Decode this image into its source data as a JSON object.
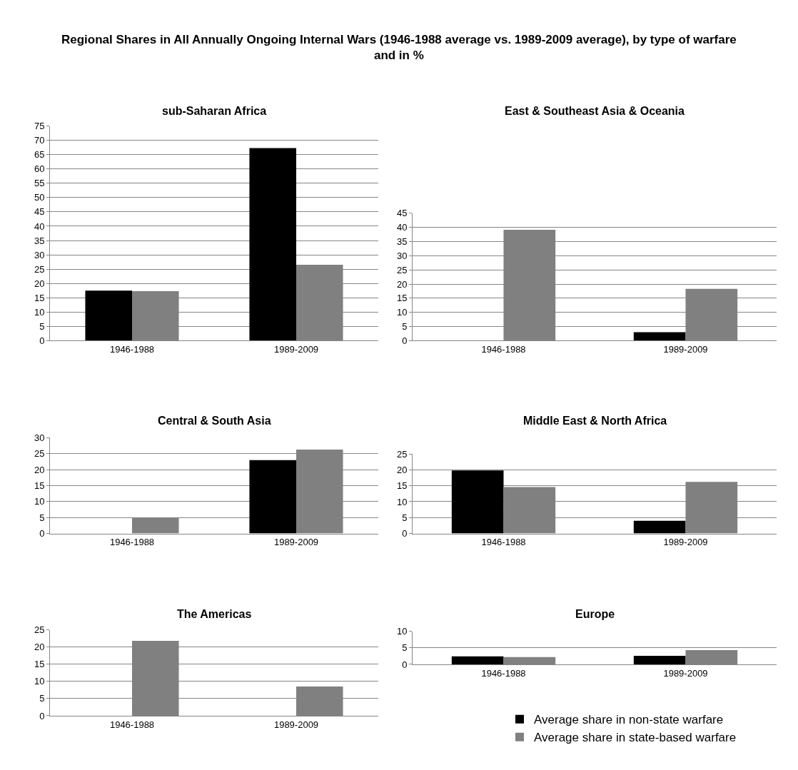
{
  "chart_data": [
    {
      "type": "bar",
      "title": "sub-Saharan Africa",
      "annotations": [
        "Regional Shares in All Annually Ongoing Internal Wars (1946-1988 average vs. 1989-2009 average), by type of warfare and in %"
      ],
      "categories": [
        "1946-1988",
        "1989-2009"
      ],
      "series": [
        {
          "color": "#000000",
          "values": [
            17.5,
            67.3
          ]
        },
        {
          "color": "#808080",
          "values": [
            17.3,
            26.5
          ]
        }
      ],
      "ylim": [
        0,
        75
      ],
      "yticks": [
        0,
        5,
        10,
        15,
        20,
        25,
        30,
        35,
        40,
        45,
        50,
        55,
        60,
        65,
        70,
        75
      ],
      "grid": "y",
      "tick_labels": "y",
      "legend": false
    },
    {
      "type": "bar",
      "title": "East & Southeast Asia & Oceania",
      "categories": [
        "1946-1988",
        "1989-2009"
      ],
      "series": [
        {
          "color": "#000000",
          "values": [
            0,
            3.0
          ]
        },
        {
          "color": "#808080",
          "values": [
            39.2,
            18.3
          ]
        }
      ],
      "ylim": [
        0,
        45
      ],
      "yticks": [
        0,
        5,
        10,
        15,
        20,
        25,
        30,
        35,
        40,
        45
      ],
      "grid": "y",
      "legend": false
    },
    {
      "type": "bar",
      "title": "Central & South Asia",
      "categories": [
        "1946-1988",
        "1989-2009"
      ],
      "series": [
        {
          "color": "#000000",
          "values": [
            0,
            23.0
          ]
        },
        {
          "color": "#808080",
          "values": [
            4.9,
            26.3
          ]
        }
      ],
      "ylim": [
        0,
        30
      ],
      "yticks": [
        0,
        5,
        10,
        15,
        20,
        25,
        30
      ],
      "grid": "y",
      "legend": false
    },
    {
      "type": "bar",
      "title": "Middle East & North Africa",
      "categories": [
        "1946-1988",
        "1989-2009"
      ],
      "series": [
        {
          "color": "#000000",
          "values": [
            19.8,
            4.0
          ]
        },
        {
          "color": "#808080",
          "values": [
            14.6,
            16.2
          ]
        }
      ],
      "ylim": [
        0,
        25
      ],
      "yticks": [
        0,
        5,
        10,
        15,
        20,
        25
      ],
      "grid": "y",
      "legend": false
    },
    {
      "type": "bar",
      "title": "The Americas",
      "categories": [
        "1946-1988",
        "1989-2009"
      ],
      "series": [
        {
          "color": "#000000",
          "values": [
            0,
            0
          ]
        },
        {
          "color": "#808080",
          "values": [
            21.8,
            8.5
          ]
        }
      ],
      "ylim": [
        0,
        25
      ],
      "yticks": [
        0,
        5,
        10,
        15,
        20,
        25
      ],
      "grid": "y",
      "legend": false
    },
    {
      "type": "bar",
      "title": "Europe",
      "categories": [
        "1946-1988",
        "1989-2009"
      ],
      "series": [
        {
          "name": "Average share in non-state warfare",
          "color": "#000000",
          "values": [
            2.4,
            2.6
          ]
        },
        {
          "name": "Average share in state-based warfare",
          "color": "#808080",
          "values": [
            2.2,
            4.3
          ]
        }
      ],
      "ylim": [
        0,
        10
      ],
      "yticks": [
        0,
        5,
        10
      ],
      "grid": "y",
      "legend": "bottom"
    }
  ]
}
